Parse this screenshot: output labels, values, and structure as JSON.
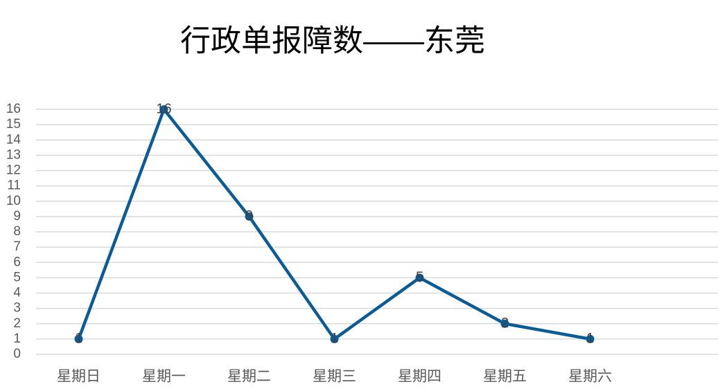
{
  "chart_data": {
    "type": "line",
    "title": "行政单报障数——东莞",
    "categories": [
      "星期日",
      "星期一",
      "星期二",
      "星期三",
      "星期四",
      "星期五",
      "星期六",
      null
    ],
    "series": [
      {
        "color": "#0b5c96",
        "values": [
          1,
          16,
          9,
          1,
          5,
          2,
          1,
          null
        ]
      }
    ],
    "ylim": [
      0,
      16
    ],
    "yticks": [
      0,
      1,
      2,
      3,
      4,
      5,
      6,
      7,
      8,
      9,
      10,
      11,
      12,
      13,
      14,
      15,
      16
    ],
    "grid": true,
    "data_labels": true
  }
}
